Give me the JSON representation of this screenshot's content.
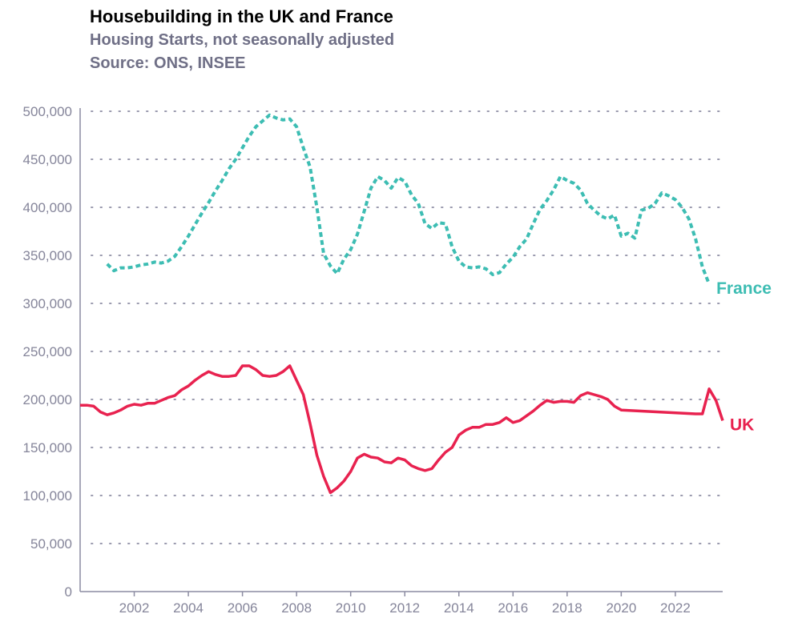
{
  "chart_data": {
    "type": "line",
    "title": "Housebuilding in the UK and France",
    "subtitle": "Housing Starts, not seasonally adjusted",
    "source": "Source: ONS, INSEE",
    "xlabel": "",
    "ylabel": "",
    "xlim": [
      2000.0,
      2023.75
    ],
    "ylim": [
      0,
      500000
    ],
    "y_ticks": [
      0,
      50000,
      100000,
      150000,
      200000,
      250000,
      300000,
      350000,
      400000,
      450000,
      500000
    ],
    "y_tick_labels": [
      "0",
      "50,000",
      "100,000",
      "150,000",
      "200,000",
      "250,000",
      "300,000",
      "350,000",
      "400,000",
      "450,000",
      "500,000"
    ],
    "x_ticks": [
      2002,
      2004,
      2006,
      2008,
      2010,
      2012,
      2014,
      2016,
      2018,
      2020,
      2022
    ],
    "x_tick_labels": [
      "2002",
      "2004",
      "2006",
      "2008",
      "2010",
      "2012",
      "2014",
      "2016",
      "2018",
      "2020",
      "2022"
    ],
    "grid": "horizontal dotted",
    "series": [
      {
        "name": "France",
        "color": "#3dbdb3",
        "style": "dotted",
        "points": [
          [
            2001.0,
            341000
          ],
          [
            2001.25,
            334000
          ],
          [
            2001.5,
            337000
          ],
          [
            2001.75,
            337000
          ],
          [
            2002.0,
            338000
          ],
          [
            2002.25,
            340000
          ],
          [
            2002.5,
            341000
          ],
          [
            2002.75,
            343000
          ],
          [
            2003.0,
            342000
          ],
          [
            2003.25,
            344000
          ],
          [
            2003.5,
            349000
          ],
          [
            2003.75,
            359000
          ],
          [
            2004.0,
            370000
          ],
          [
            2004.25,
            382000
          ],
          [
            2004.5,
            394000
          ],
          [
            2004.75,
            405000
          ],
          [
            2005.0,
            417000
          ],
          [
            2005.25,
            428000
          ],
          [
            2005.5,
            440000
          ],
          [
            2005.75,
            450000
          ],
          [
            2006.0,
            462000
          ],
          [
            2006.25,
            474000
          ],
          [
            2006.5,
            484000
          ],
          [
            2006.75,
            490000
          ],
          [
            2007.0,
            496000
          ],
          [
            2007.25,
            493000
          ],
          [
            2007.5,
            491000
          ],
          [
            2007.75,
            492000
          ],
          [
            2008.0,
            484000
          ],
          [
            2008.25,
            462000
          ],
          [
            2008.5,
            442000
          ],
          [
            2008.75,
            400000
          ],
          [
            2009.0,
            352000
          ],
          [
            2009.25,
            339000
          ],
          [
            2009.5,
            331000
          ],
          [
            2009.75,
            346000
          ],
          [
            2010.0,
            356000
          ],
          [
            2010.25,
            372000
          ],
          [
            2010.5,
            396000
          ],
          [
            2010.75,
            420000
          ],
          [
            2011.0,
            432000
          ],
          [
            2011.25,
            428000
          ],
          [
            2011.5,
            420000
          ],
          [
            2011.75,
            431000
          ],
          [
            2012.0,
            427000
          ],
          [
            2012.25,
            413000
          ],
          [
            2012.5,
            404000
          ],
          [
            2012.75,
            383000
          ],
          [
            2013.0,
            378000
          ],
          [
            2013.25,
            384000
          ],
          [
            2013.5,
            383000
          ],
          [
            2013.75,
            359000
          ],
          [
            2014.0,
            344000
          ],
          [
            2014.25,
            338000
          ],
          [
            2014.5,
            337000
          ],
          [
            2014.75,
            338000
          ],
          [
            2015.0,
            336000
          ],
          [
            2015.25,
            330000
          ],
          [
            2015.5,
            332000
          ],
          [
            2015.75,
            341000
          ],
          [
            2016.0,
            348000
          ],
          [
            2016.25,
            359000
          ],
          [
            2016.5,
            367000
          ],
          [
            2016.75,
            383000
          ],
          [
            2017.0,
            398000
          ],
          [
            2017.25,
            407000
          ],
          [
            2017.5,
            418000
          ],
          [
            2017.75,
            432000
          ],
          [
            2018.0,
            428000
          ],
          [
            2018.25,
            425000
          ],
          [
            2018.5,
            418000
          ],
          [
            2018.75,
            404000
          ],
          [
            2019.0,
            397000
          ],
          [
            2019.25,
            391000
          ],
          [
            2019.5,
            388000
          ],
          [
            2019.75,
            392000
          ],
          [
            2020.0,
            370000
          ],
          [
            2020.25,
            373000
          ],
          [
            2020.5,
            368000
          ],
          [
            2020.75,
            397000
          ],
          [
            2021.0,
            399000
          ],
          [
            2021.25,
            404000
          ],
          [
            2021.5,
            415000
          ],
          [
            2021.75,
            412000
          ],
          [
            2022.0,
            408000
          ],
          [
            2022.25,
            400000
          ],
          [
            2022.5,
            388000
          ],
          [
            2022.75,
            367000
          ],
          [
            2023.0,
            338000
          ],
          [
            2023.25,
            320000
          ]
        ]
      },
      {
        "name": "UK",
        "color": "#e8224f",
        "style": "solid",
        "points": [
          [
            2000.0,
            194000
          ],
          [
            2000.25,
            194000
          ],
          [
            2000.5,
            193000
          ],
          [
            2000.75,
            187000
          ],
          [
            2001.0,
            184000
          ],
          [
            2001.25,
            186000
          ],
          [
            2001.5,
            189000
          ],
          [
            2001.75,
            193000
          ],
          [
            2002.0,
            195000
          ],
          [
            2002.25,
            194000
          ],
          [
            2002.5,
            196000
          ],
          [
            2002.75,
            196000
          ],
          [
            2003.0,
            199000
          ],
          [
            2003.25,
            202000
          ],
          [
            2003.5,
            204000
          ],
          [
            2003.75,
            210000
          ],
          [
            2004.0,
            214000
          ],
          [
            2004.25,
            220000
          ],
          [
            2004.5,
            225000
          ],
          [
            2004.75,
            229000
          ],
          [
            2005.0,
            226000
          ],
          [
            2005.25,
            224000
          ],
          [
            2005.5,
            224000
          ],
          [
            2005.75,
            225000
          ],
          [
            2006.0,
            235000
          ],
          [
            2006.25,
            235000
          ],
          [
            2006.5,
            231000
          ],
          [
            2006.75,
            225000
          ],
          [
            2007.0,
            224000
          ],
          [
            2007.25,
            225000
          ],
          [
            2007.5,
            229000
          ],
          [
            2007.75,
            235000
          ],
          [
            2008.0,
            220000
          ],
          [
            2008.25,
            205000
          ],
          [
            2008.5,
            175000
          ],
          [
            2008.75,
            142000
          ],
          [
            2009.0,
            120000
          ],
          [
            2009.25,
            103000
          ],
          [
            2009.5,
            108000
          ],
          [
            2009.75,
            115000
          ],
          [
            2010.0,
            125000
          ],
          [
            2010.25,
            139000
          ],
          [
            2010.5,
            143000
          ],
          [
            2010.75,
            140000
          ],
          [
            2011.0,
            139000
          ],
          [
            2011.25,
            135000
          ],
          [
            2011.5,
            134000
          ],
          [
            2011.75,
            139000
          ],
          [
            2012.0,
            137000
          ],
          [
            2012.25,
            131000
          ],
          [
            2012.5,
            128000
          ],
          [
            2012.75,
            126000
          ],
          [
            2013.0,
            128000
          ],
          [
            2013.25,
            137000
          ],
          [
            2013.5,
            145000
          ],
          [
            2013.75,
            150000
          ],
          [
            2014.0,
            163000
          ],
          [
            2014.25,
            168000
          ],
          [
            2014.5,
            171000
          ],
          [
            2014.75,
            171000
          ],
          [
            2015.0,
            174000
          ],
          [
            2015.25,
            174000
          ],
          [
            2015.5,
            176000
          ],
          [
            2015.75,
            181000
          ],
          [
            2016.0,
            176000
          ],
          [
            2016.25,
            178000
          ],
          [
            2016.5,
            183000
          ],
          [
            2016.75,
            188000
          ],
          [
            2017.0,
            194000
          ],
          [
            2017.25,
            199000
          ],
          [
            2017.5,
            197000
          ],
          [
            2017.75,
            198000
          ],
          [
            2018.0,
            198000
          ],
          [
            2018.25,
            197000
          ],
          [
            2018.5,
            204000
          ],
          [
            2018.75,
            207000
          ],
          [
            2019.0,
            205000
          ],
          [
            2019.25,
            203000
          ],
          [
            2019.5,
            200000
          ],
          [
            2019.75,
            193000
          ],
          [
            2020.0,
            189000
          ],
          [
            2022.75,
            185000
          ],
          [
            2023.0,
            185000
          ],
          [
            2023.25,
            211000
          ],
          [
            2023.5,
            199000
          ],
          [
            2023.75,
            178000
          ]
        ]
      }
    ]
  }
}
